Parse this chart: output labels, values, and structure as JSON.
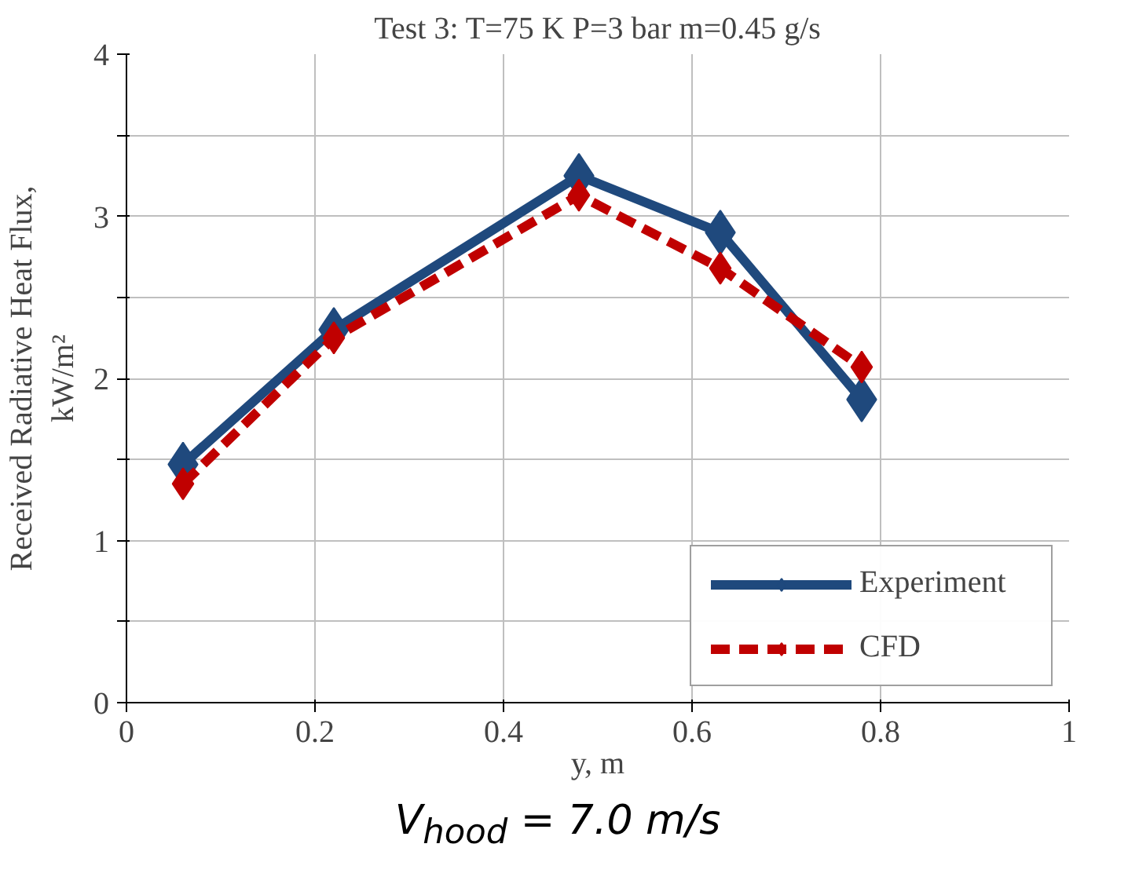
{
  "chart_data": {
    "type": "line",
    "title": "Test 3: T=75 K P=3 bar m=0.45 g/s",
    "xlabel": "y, m",
    "ylabel": "Received Radiative Heat Flux,\nkW/m²",
    "x": [
      0.06,
      0.22,
      0.48,
      0.63,
      0.78
    ],
    "series": [
      {
        "name": "Experiment",
        "color": "#1f497d",
        "values": [
          1.47,
          2.3,
          3.25,
          2.9,
          1.87
        ],
        "line_style": "solid"
      },
      {
        "name": "CFD",
        "color": "#c00000",
        "values": [
          1.35,
          2.25,
          3.13,
          2.68,
          2.07
        ],
        "line_style": "dashed"
      }
    ],
    "xlim": [
      0,
      1
    ],
    "xticks": [
      0,
      0.2,
      0.4,
      0.6,
      0.8,
      1
    ],
    "ylim": [
      0,
      4
    ],
    "yticks": [
      0,
      {
        "value": 0.5,
        "label": null
      },
      1,
      {
        "value": 1.5,
        "label": null
      },
      2,
      {
        "value": 2.5,
        "label": null
      },
      3,
      {
        "value": 3.5,
        "label": null
      },
      4
    ],
    "grid": true,
    "legend": "bottom right",
    "marker": "diamond",
    "annotations": [
      "V$_{hood}$ = 7.0 m/s"
    ]
  }
}
